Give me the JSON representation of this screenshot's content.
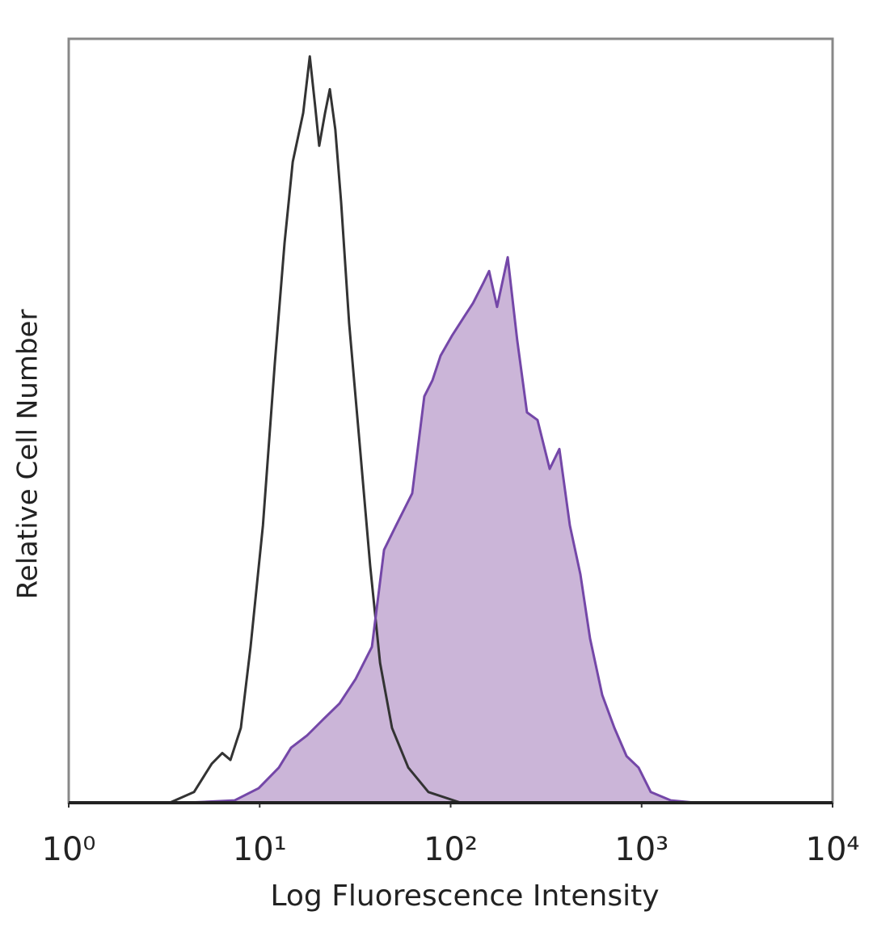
{
  "chart_data": {
    "type": "line",
    "xlabel": "Log Fluorescence Intensity",
    "ylabel": "Relative Cell Number",
    "xscale": "log",
    "xlim": [
      1,
      10000
    ],
    "xticks": [
      {
        "value": 1,
        "label": "10⁰"
      },
      {
        "value": 10,
        "label": "10¹"
      },
      {
        "value": 100,
        "label": "10²"
      },
      {
        "value": 1000,
        "label": "10³"
      },
      {
        "value": 10000,
        "label": "10⁴"
      }
    ],
    "ylim": [
      0,
      100
    ],
    "series": [
      {
        "color": "#333333",
        "fill": "none",
        "x": [
          3.38,
          4.53,
          5.61,
          6.37,
          7.03,
          7.97,
          8.96,
          10.4,
          12.0,
          13.5,
          14.9,
          16.9,
          18.3,
          19.5,
          20.5,
          22.0,
          23.3,
          24.9,
          26.7,
          29.4,
          33.4,
          37.9,
          42.7,
          49.3,
          60.0,
          76.5,
          113
        ],
        "values": [
          0,
          1.4,
          5.1,
          6.5,
          5.6,
          9.8,
          20.4,
          36.3,
          57.5,
          73.3,
          83.9,
          90.3,
          97.7,
          91.3,
          86.0,
          90.3,
          93.4,
          88.1,
          78.6,
          62.8,
          46.9,
          31.0,
          18.3,
          9.8,
          4.6,
          1.4,
          0
        ]
      },
      {
        "color": "#7447a8",
        "fill": "#cbb5d8",
        "x": [
          4.11,
          7.38,
          9.88,
          12.6,
          14.6,
          17.7,
          21.5,
          26.2,
          31.8,
          38.7,
          44.8,
          51.8,
          62.9,
          72.8,
          80.3,
          88.5,
          102,
          119,
          131,
          148,
          159,
          175,
          199,
          223,
          251,
          285,
          330,
          371,
          421,
          478,
          537,
          622,
          720,
          834,
          964,
          1117,
          1422,
          1907
        ],
        "values": [
          0,
          0.3,
          1.9,
          4.6,
          7.2,
          8.8,
          10.9,
          13.0,
          16.2,
          20.4,
          33.1,
          36.3,
          40.5,
          53.2,
          55.3,
          58.5,
          61.2,
          63.8,
          65.4,
          68.0,
          69.6,
          64.9,
          71.4,
          60.6,
          51.1,
          50.1,
          43.7,
          46.3,
          36.3,
          29.9,
          21.5,
          14.1,
          9.8,
          6.1,
          4.6,
          1.4,
          0.3,
          0
        ]
      }
    ]
  }
}
